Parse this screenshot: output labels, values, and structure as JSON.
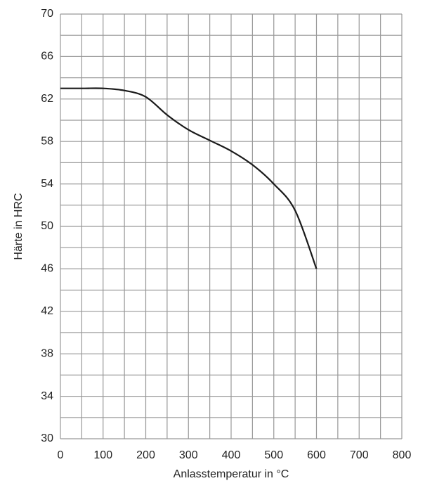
{
  "chart_data": {
    "type": "line",
    "xlabel": "Anlasstemperatur in °C",
    "ylabel": "Härte in HRC",
    "series": [
      {
        "color": "#1a1a1a",
        "x": [
          0,
          50,
          100,
          150,
          200,
          250,
          300,
          350,
          400,
          450,
          500,
          550,
          600
        ],
        "values": [
          63,
          63,
          63,
          62.8,
          62.2,
          60.5,
          59.1,
          58.1,
          57.1,
          55.8,
          54,
          51.5,
          46
        ]
      }
    ],
    "xlim": [
      0,
      800
    ],
    "ylim": [
      30,
      70
    ],
    "xticks": [
      0,
      100,
      200,
      300,
      400,
      500,
      600,
      700,
      800
    ],
    "yticks": [
      70,
      66,
      62,
      58,
      54,
      50,
      46,
      42,
      38,
      34,
      30
    ],
    "xticks_minor": [
      50,
      150,
      250,
      350,
      450,
      550,
      650,
      750
    ],
    "yticks_minor": [
      68,
      64,
      60,
      56,
      52,
      48,
      44,
      40,
      36,
      32
    ],
    "grid": true
  }
}
